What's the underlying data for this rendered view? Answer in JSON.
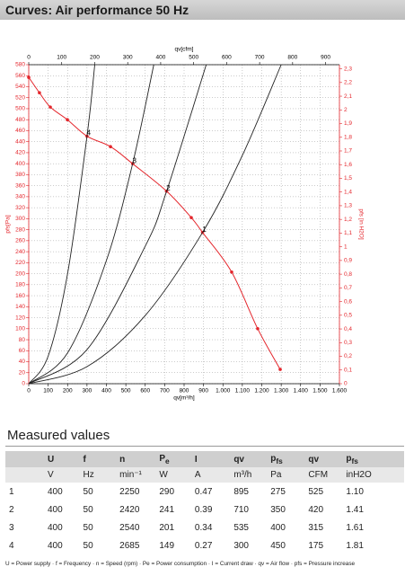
{
  "header": {
    "title": "Curves: Air performance 50 Hz"
  },
  "chart_data": {
    "type": "line",
    "x_label": "qv[m³/h]",
    "x2_label": "qv[cfm]",
    "y_label": "pfs[Pa]",
    "y2_label": "pfs [in H2O]",
    "xlim": [
      0,
      1600
    ],
    "xticks": [
      0,
      100,
      200,
      300,
      400,
      500,
      600,
      700,
      800,
      900,
      {
        "value": 1000,
        "label": "1.000"
      },
      {
        "value": 1100,
        "label": "1.100"
      },
      {
        "value": 1200,
        "label": "1.200"
      },
      {
        "value": 1300,
        "label": "1.300"
      },
      {
        "value": 1400,
        "label": "1.400"
      },
      {
        "value": 1500,
        "label": "1.500"
      },
      {
        "value": 1600,
        "label": "1.600"
      }
    ],
    "x2lim": [
      0,
      942
    ],
    "x2ticks": [
      0,
      100,
      200,
      300,
      400,
      500,
      600,
      700,
      800,
      900
    ],
    "ylim": [
      0,
      580
    ],
    "yticks": [
      0,
      20,
      40,
      60,
      80,
      100,
      120,
      140,
      160,
      180,
      200,
      220,
      240,
      260,
      280,
      300,
      320,
      340,
      360,
      380,
      400,
      420,
      440,
      460,
      480,
      500,
      520,
      540,
      560,
      580
    ],
    "y2lim": [
      0,
      2.33
    ],
    "y2ticks": [
      0,
      {
        "value": 0.1,
        "label": "0,1"
      },
      {
        "value": 0.2,
        "label": "0,2"
      },
      {
        "value": 0.3,
        "label": "0,3"
      },
      {
        "value": 0.4,
        "label": "0,4"
      },
      {
        "value": 0.5,
        "label": "0,5"
      },
      {
        "value": 0.6,
        "label": "0,6"
      },
      {
        "value": 0.7,
        "label": "0,7"
      },
      {
        "value": 0.8,
        "label": "0,8"
      },
      {
        "value": 0.9,
        "label": "0,9"
      },
      1,
      {
        "value": 1.1,
        "label": "1,1"
      },
      {
        "value": 1.2,
        "label": "1,2"
      },
      {
        "value": 1.3,
        "label": "1,3"
      },
      {
        "value": 1.4,
        "label": "1,4"
      },
      {
        "value": 1.5,
        "label": "1,5"
      },
      {
        "value": 1.6,
        "label": "1,6"
      },
      {
        "value": 1.7,
        "label": "1,7"
      },
      {
        "value": 1.8,
        "label": "1,8"
      },
      {
        "value": 1.9,
        "label": "1,9"
      },
      2,
      {
        "value": 2.1,
        "label": "2,1"
      },
      {
        "value": 2.2,
        "label": "2,2"
      },
      {
        "value": 2.3,
        "label": "2,3"
      }
    ],
    "grid": true,
    "series": [
      {
        "color": "#e4262c",
        "markers": true,
        "x": [
          0,
          55,
          111,
          199,
          300,
          421,
          535,
          710,
          837,
          895,
          1045,
          1179,
          1295
        ],
        "values": [
          557,
          529,
          503,
          480,
          450,
          431,
          400,
          350,
          302,
          275,
          203,
          100,
          26
        ]
      },
      {
        "name": "1",
        "color": "#222222",
        "x": [
          0,
          300,
          600,
          895,
          1100,
          1300
        ],
        "values": [
          0,
          31,
          124,
          275,
          415,
          580
        ]
      },
      {
        "name": "2",
        "color": "#222222",
        "x": [
          0,
          300,
          600,
          710,
          914
        ],
        "values": [
          0,
          62,
          250,
          350,
          580
        ]
      },
      {
        "name": "3",
        "color": "#222222",
        "x": [
          0,
          200,
          400,
          535,
          644
        ],
        "values": [
          0,
          56,
          224,
          400,
          580
        ]
      },
      {
        "name": "4",
        "color": "#222222",
        "x": [
          0,
          100,
          200,
          300,
          340
        ],
        "values": [
          0,
          50,
          200,
          450,
          580
        ]
      }
    ]
  },
  "measured": {
    "title": "Measured values",
    "columns": [
      "U",
      "f",
      "n",
      {
        "symbol": "P",
        "sub": "e"
      },
      "I",
      "qv",
      {
        "symbol": "p",
        "sub": "fs"
      },
      "qv",
      {
        "symbol": "p",
        "sub": "fs"
      }
    ],
    "units": [
      "V",
      "Hz",
      "min⁻¹",
      "W",
      "A",
      "m³/h",
      "Pa",
      "CFM",
      "inH2O"
    ],
    "rows": [
      [
        "1",
        "400",
        "50",
        "2250",
        "290",
        "0.47",
        "895",
        "275",
        "525",
        "1.10"
      ],
      [
        "2",
        "400",
        "50",
        "2420",
        "241",
        "0.39",
        "710",
        "350",
        "420",
        "1.41"
      ],
      [
        "3",
        "400",
        "50",
        "2540",
        "201",
        "0.34",
        "535",
        "400",
        "315",
        "1.61"
      ],
      [
        "4",
        "400",
        "50",
        "2685",
        "149",
        "0.27",
        "300",
        "450",
        "175",
        "1.81"
      ]
    ],
    "footnote": "U = Power supply · f = Frequency · n = Speed (rpm) · Pe = Power consumption · I = Current draw · qv = Air flow · pfs = Pressure increase"
  }
}
